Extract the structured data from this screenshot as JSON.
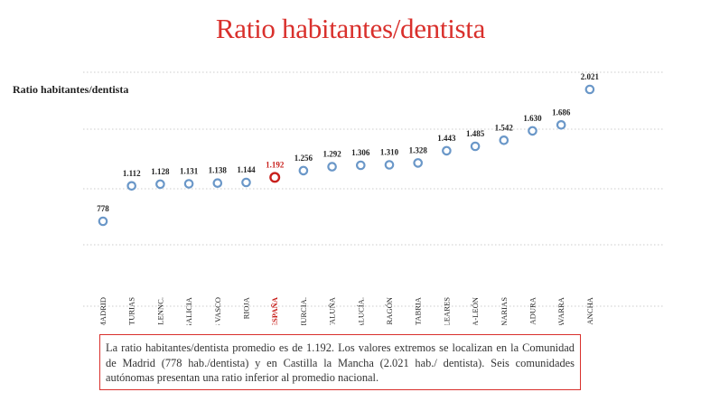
{
  "slide": {
    "title": "Ratio habitantes/dentista",
    "note": "La ratio habitantes/dentista promedio es de 1.192.  Los valores extremos se localizan en la Comunidad de Madrid (778 hab./dentista) y en Castilla la Mancha (2.021 hab./ dentista). Seis comunidades autónomas presentan una ratio inferior al promedio nacional."
  },
  "colors": {
    "title": "#d9302c",
    "point": "#6a97c8",
    "highlight": "#c8201c",
    "text": "#222222",
    "grid": "#cccccc"
  },
  "chart_data": {
    "type": "scatter",
    "title": "Ratio habitantes/dentista",
    "categories": [
      "MADRID",
      "ASTURIAS",
      "COM.VALENNC.",
      "GALICIA",
      "PAÍS VASCO",
      "RIOJA",
      "ESPAÑA",
      "MURCIA.",
      "CATALUÑA",
      "ANDALUCÍA.",
      "ARAGÓN",
      "CANTABRIA",
      "BALEARES",
      "CASTILLA-LEÓN",
      "CANARIAS",
      "EXTREMADURA",
      "NAVARRA",
      "CASTILLA- LA MANCHA"
    ],
    "values": [
      778,
      1112,
      1128,
      1131,
      1138,
      1144,
      1192,
      1256,
      1292,
      1306,
      1310,
      1328,
      1443,
      1485,
      1542,
      1630,
      1686,
      2021
    ],
    "value_labels": [
      "778",
      "1.112",
      "1.128",
      "1.131",
      "1.138",
      "1.144",
      "1.192",
      "1.256",
      "1.292",
      "1.306",
      "1.310",
      "1.328",
      "1.443",
      "1.485",
      "1.542",
      "1.630",
      "1.686",
      "2.021"
    ],
    "highlight": "ESPAÑA",
    "ylim": [
      500,
      2200
    ],
    "grid": "horizontal-dotted",
    "legend": "none"
  }
}
